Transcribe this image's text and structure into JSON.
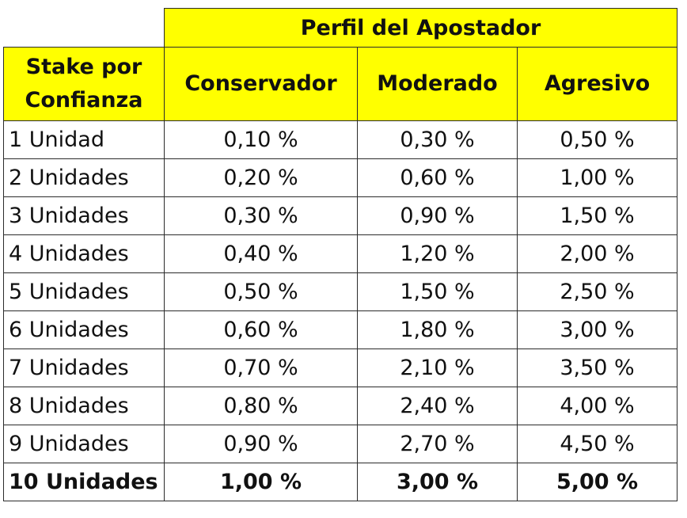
{
  "table": {
    "group_header": "Perfil del Apostador",
    "row_header": [
      "Stake por",
      "Confianza"
    ],
    "columns": [
      "Conservador",
      "Moderado",
      "Agresivo"
    ],
    "rows": [
      {
        "label": "1 Unidad",
        "values": [
          "0,10 %",
          "0,30 %",
          "0,50 %"
        ]
      },
      {
        "label": "2 Unidades",
        "values": [
          "0,20 %",
          "0,60 %",
          "1,00 %"
        ]
      },
      {
        "label": "3 Unidades",
        "values": [
          "0,30 %",
          "0,90 %",
          "1,50 %"
        ]
      },
      {
        "label": "4 Unidades",
        "values": [
          "0,40 %",
          "1,20 %",
          "2,00 %"
        ]
      },
      {
        "label": "5 Unidades",
        "values": [
          "0,50 %",
          "1,50 %",
          "2,50 %"
        ]
      },
      {
        "label": "6 Unidades",
        "values": [
          "0,60 %",
          "1,80 %",
          "3,00 %"
        ]
      },
      {
        "label": "7 Unidades",
        "values": [
          "0,70 %",
          "2,10 %",
          "3,50 %"
        ]
      },
      {
        "label": "8 Unidades",
        "values": [
          "0,80 %",
          "2,40 %",
          "4,00 %"
        ]
      },
      {
        "label": "9 Unidades",
        "values": [
          "0,90 %",
          "2,70 %",
          "4,50 %"
        ]
      },
      {
        "label": "10 Unidades",
        "values": [
          "1,00 %",
          "3,00 %",
          "5,00 %"
        ]
      }
    ],
    "colors": {
      "header_fill": "#ffff00",
      "border": "#2b2b2b",
      "text": "#111111"
    }
  }
}
